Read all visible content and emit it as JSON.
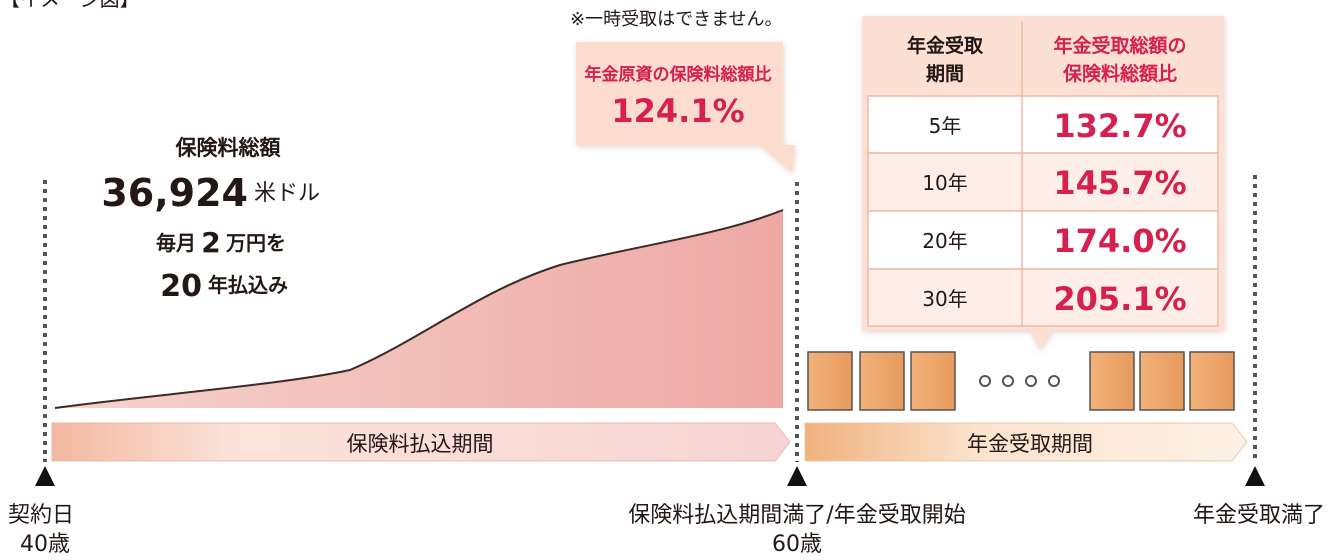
{
  "header": {
    "title": "【イメージ図】",
    "note": "※一時受取はできません。"
  },
  "callout": {
    "label": "年金原資の保険料総額比",
    "value": "124.1%"
  },
  "premium": {
    "label": "保険料総額",
    "amount": "36,924",
    "unit": "米ドル",
    "monthly": [
      "毎月",
      "2",
      "万円を"
    ],
    "years": [
      "20",
      "年払込み"
    ]
  },
  "table": {
    "headers": [
      [
        "年金受取",
        "期間"
      ],
      [
        "年金受取総額の",
        "保険料総額比"
      ]
    ],
    "rows": [
      [
        "5年",
        "132.7%"
      ],
      [
        "10年",
        "145.7%"
      ],
      [
        "20年",
        "174.0%"
      ],
      [
        "30年",
        "205.1%"
      ]
    ]
  },
  "periods": {
    "payment": "保険料払込期間",
    "pension": "年金受取期間"
  },
  "milestones": [
    {
      "label": "契約日",
      "age": "40歳"
    },
    {
      "label": "保険料払込期間満了/年金受取開始",
      "age": "60歳"
    },
    {
      "label": "年金受取満了"
    }
  ]
}
